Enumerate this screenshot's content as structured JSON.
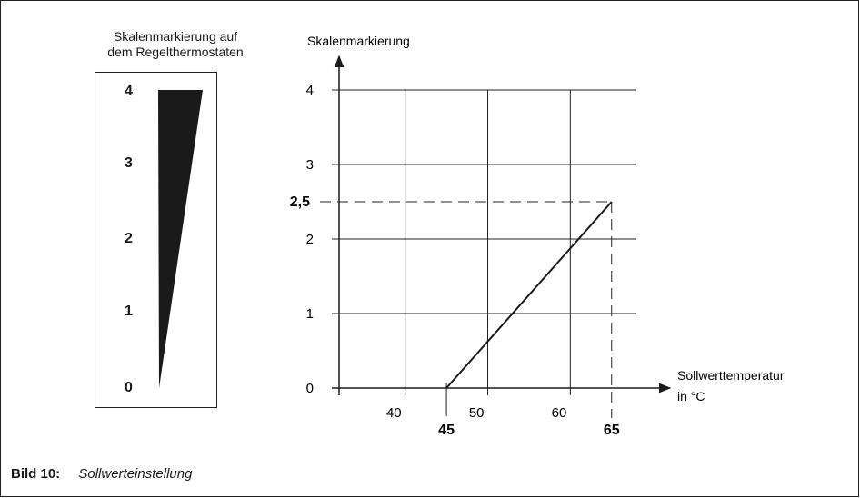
{
  "thermostat": {
    "title_line1": "Skalenmarkierung auf",
    "title_line2": "dem Regelthermostaten",
    "scale_labels": [
      "4",
      "3",
      "2",
      "1",
      "0"
    ]
  },
  "chart_data": {
    "type": "line",
    "ylabel": "Skalenmarkierung",
    "xlabel_line1": "Sollwerttemperatur",
    "xlabel_line2": "in °C",
    "x_ticks": [
      "40",
      "50",
      "60"
    ],
    "y_ticks": [
      "0",
      "1",
      "2",
      "3",
      "4"
    ],
    "xlim": [
      32,
      68
    ],
    "ylim": [
      0,
      4
    ],
    "series": [
      {
        "x": [
          45,
          65
        ],
        "y": [
          0,
          2.5
        ]
      }
    ],
    "annotations": {
      "y_marker": "2,5",
      "x_start": "45",
      "x_end": "65"
    },
    "grid": true
  },
  "caption": {
    "label": "Bild 10:",
    "text": "Sollwerteinstellung"
  }
}
